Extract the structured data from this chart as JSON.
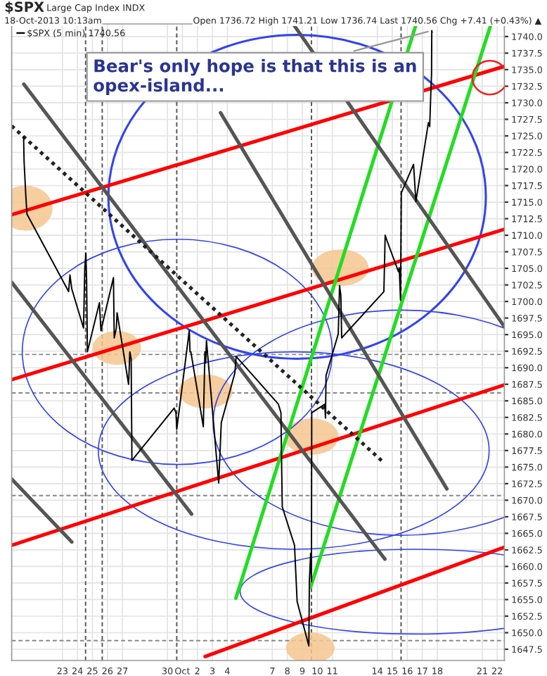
{
  "chart_data": {
    "type": "line",
    "title": "$SPX",
    "subtitle": "Large Cap Index INDX",
    "annotations": [
      "18-Oct-2013 10:13am",
      "Open 1736.72 High 1741.21 Low 1736.74 Last 1740.56 Chg +7.41 (+0.43%) ▲",
      {
        "text": "Bear's only hope is that this is an opex-island...",
        "x": "2013-10-17T15:13",
        "y": 1740.9
      }
    ],
    "xlim": [
      "2013-09-19T14:42",
      "2013-10-22T11:27"
    ],
    "ylim": [
      1645.8,
      1741.9
    ],
    "xticks": [
      {
        "value": "2013-09-23",
        "label": "23"
      },
      {
        "value": "2013-09-24",
        "label": "24"
      },
      {
        "value": "2013-09-25",
        "label": "25"
      },
      {
        "value": "2013-09-26",
        "label": "26"
      },
      {
        "value": "2013-09-27",
        "label": "27"
      },
      {
        "value": "2013-09-30",
        "label": "30"
      },
      {
        "value": "2013-10-01",
        "label": "Oct"
      },
      {
        "value": "2013-10-02",
        "label": "2"
      },
      {
        "value": "2013-10-03",
        "label": "3"
      },
      {
        "value": "2013-10-04",
        "label": "4"
      },
      {
        "value": "2013-10-07",
        "label": "7"
      },
      {
        "value": "2013-10-08",
        "label": "8"
      },
      {
        "value": "2013-10-09",
        "label": "9"
      },
      {
        "value": "2013-10-10",
        "label": "10"
      },
      {
        "value": "2013-10-11",
        "label": "11"
      },
      {
        "value": "2013-10-14",
        "label": "14"
      },
      {
        "value": "2013-10-15",
        "label": "15"
      },
      {
        "value": "2013-10-16",
        "label": "16"
      },
      {
        "value": "2013-10-17",
        "label": "17"
      },
      {
        "value": "2013-10-18",
        "label": "18"
      },
      {
        "value": "2013-10-21",
        "label": "21"
      },
      {
        "value": "2013-10-22",
        "label": "22"
      }
    ],
    "yticks": [
      {
        "value": 1647.5,
        "label": "1647.5"
      },
      {
        "value": 1650,
        "label": "1650.0"
      },
      {
        "value": 1652.5,
        "label": "1652.5"
      },
      {
        "value": 1655,
        "label": "1655.0"
      },
      {
        "value": 1657.5,
        "label": "1657.5"
      },
      {
        "value": 1660,
        "label": "1660.0"
      },
      {
        "value": 1662.5,
        "label": "1662.5"
      },
      {
        "value": 1665,
        "label": "1665.0"
      },
      {
        "value": 1667.5,
        "label": "1667.5"
      },
      {
        "value": 1670,
        "label": "1670.0"
      },
      {
        "value": 1672.5,
        "label": "1672.5"
      },
      {
        "value": 1675,
        "label": "1675.0"
      },
      {
        "value": 1677.5,
        "label": "1677.5"
      },
      {
        "value": 1680,
        "label": "1680.0"
      },
      {
        "value": 1682.5,
        "label": "1682.5"
      },
      {
        "value": 1685,
        "label": "1685.0"
      },
      {
        "value": 1687.5,
        "label": "1687.5"
      },
      {
        "value": 1690,
        "label": "1690.0"
      },
      {
        "value": 1692.5,
        "label": "1692.5"
      },
      {
        "value": 1695,
        "label": "1695.0"
      },
      {
        "value": 1697.5,
        "label": "1697.5"
      },
      {
        "value": 1700,
        "label": "1700.0"
      },
      {
        "value": 1702.5,
        "label": "1702.5"
      },
      {
        "value": 1705,
        "label": "1705.0"
      },
      {
        "value": 1707.5,
        "label": "1707.5"
      },
      {
        "value": 1710,
        "label": "1710.0"
      },
      {
        "value": 1712.5,
        "label": "1712.5"
      },
      {
        "value": 1715,
        "label": "1715.0"
      },
      {
        "value": 1717.5,
        "label": "1717.5"
      },
      {
        "value": 1720,
        "label": "1720.0"
      },
      {
        "value": 1722.5,
        "label": "1722.5"
      },
      {
        "value": 1725,
        "label": "1725.0"
      },
      {
        "value": 1727.5,
        "label": "1727.5"
      },
      {
        "value": 1730,
        "label": "1730.0"
      },
      {
        "value": 1732.5,
        "label": "1732.5"
      },
      {
        "value": 1735,
        "label": "1735.0"
      },
      {
        "value": 1737.5,
        "label": "1737.5"
      },
      {
        "value": 1740,
        "label": "1740.0"
      }
    ],
    "grid": true,
    "legend": "top left",
    "ref_lines": [
      {
        "axis": "y",
        "value": 1692.0,
        "color": "#888888",
        "line_style": "dashed"
      },
      {
        "axis": "y",
        "value": 1686.2,
        "color": "#888888",
        "line_style": "dashed"
      },
      {
        "axis": "y",
        "value": 1670.7,
        "color": "#888888",
        "line_style": "dashed"
      },
      {
        "axis": "y",
        "value": 1648.8,
        "color": "#888888",
        "line_style": "dashed"
      },
      {
        "axis": "x",
        "value": "2013-09-24T13:01",
        "color": "#555555",
        "line_style": "dashed"
      },
      {
        "axis": "x",
        "value": "2013-09-25T15:40",
        "color": "#555555",
        "line_style": "dashed"
      },
      {
        "axis": "x",
        "value": "2013-09-30T14:58",
        "color": "#555555",
        "line_style": "dashed"
      },
      {
        "axis": "x",
        "value": "2013-10-09T14:34",
        "color": "#555555",
        "line_style": "dashed"
      },
      {
        "axis": "x",
        "value": "2013-10-15T14:03",
        "color": "#555555",
        "line_style": "dashed"
      }
    ],
    "series": [
      {
        "name": "$SPX (5 min) 1740.56",
        "color": "#000000",
        "x": [
          "2013-09-20T09:46",
          "2013-09-20T10:36",
          "2013-09-20T13:05",
          "2013-09-20T15:09",
          "2013-09-23T09:53",
          "2013-09-23T12:02",
          "2013-09-23T14:54",
          "2013-09-24T09:42",
          "2013-09-24T11:47",
          "2013-09-24T13:28",
          "2013-09-24T14:42",
          "2013-09-24T15:56",
          "2013-09-25T11:08",
          "2013-09-25T13:36",
          "2013-09-26T09:38",
          "2013-09-26T10:52",
          "2013-09-26T14:15",
          "2013-09-26T15:29",
          "2013-09-27T09:50",
          "2013-09-27T11:54",
          "2013-09-27T13:59",
          "2013-09-27T15:13",
          "2013-09-30T10:48",
          "2013-09-30T13:44",
          "2013-09-30T14:58",
          "2013-10-01T11:00",
          "2013-10-01T12:14",
          "2013-10-01T13:32",
          "2013-10-02T09:30",
          "2013-10-02T12:02",
          "2013-10-02T13:16",
          "2013-10-02T14:30",
          "2013-10-03T10:05",
          "2013-10-03T14:15",
          "2013-10-04T11:58",
          "2013-10-04T14:03",
          "2013-10-07T09:38",
          "2013-10-07T13:47",
          "2013-10-07T14:38",
          "2013-10-07T15:52",
          "2013-10-08T11:27",
          "2013-10-08T13:32",
          "2013-10-08T15:41",
          "2013-10-09T10:25",
          "2013-10-09T10:48",
          "2013-10-09T11:15",
          "2013-10-09T13:20",
          "2013-10-09T14:34",
          "2013-10-09T15:02",
          "2013-10-10T11:50",
          "2013-10-10T13:05",
          "2013-10-10T13:55",
          "2013-10-11T09:30",
          "2013-10-11T11:35",
          "2013-10-11T13:40",
          "2013-10-11T14:58",
          "2013-10-14T10:32",
          "2013-10-14T12:37",
          "2013-10-14T14:42",
          "2013-10-15T09:53",
          "2013-10-15T11:08",
          "2013-10-15T13:12",
          "2013-10-15T14:26",
          "2013-10-16T10:01",
          "2013-10-16T12:10",
          "2013-10-16T13:47",
          "2013-10-17T09:50",
          "2013-10-17T11:54",
          "2013-10-17T13:36",
          "2013-10-17T14:50",
          "2013-10-17T15:13",
          "2013-10-17T15:41"
        ],
        "values": [
          1724.9,
          1721.1,
          1716.4,
          1713.2,
          1701.5,
          1704.0,
          1701.9,
          1696.0,
          1705.1,
          1707.3,
          1703.0,
          1692.4,
          1699.8,
          1695.6,
          1703.6,
          1694.5,
          1696.0,
          1698.3,
          1687.5,
          1692.4,
          1691.3,
          1676.0,
          1683.9,
          1683.2,
          1680.7,
          1695.6,
          1692.4,
          1692.4,
          1681.1,
          1692.4,
          1690.7,
          1694.1,
          1672.6,
          1681.7,
          1689.2,
          1691.7,
          1684.5,
          1683.2,
          1676.8,
          1669.0,
          1663.2,
          1659.0,
          1654.7,
          1648.0,
          1652.6,
          1657.7,
          1662.0,
          1657.7,
          1683.2,
          1684.5,
          1682.4,
          1688.8,
          1695.1,
          1702.4,
          1700.9,
          1694.5,
          1701.5,
          1710.0,
          1709.4,
          1704.5,
          1705.1,
          1700.2,
          1716.4,
          1720.7,
          1717.5,
          1715.1,
          1727.0,
          1726.4,
          1731.3,
          1734.3,
          1740.9,
          1740.6
        ]
      },
      {
        "color": "#ff0000",
        "x": [
          "2013-09-19T14:42",
          "2013-10-22T11:27"
        ],
        "values": [
          1713.1,
          1735.5
        ]
      },
      {
        "color": "#ff0000",
        "x": [
          "2013-09-19T14:42",
          "2013-10-22T11:27"
        ],
        "values": [
          1688.2,
          1710.9
        ]
      },
      {
        "color": "#ff0000",
        "x": [
          "2013-09-19T14:42",
          "2013-10-22T11:27"
        ],
        "values": [
          1663.2,
          1687.4
        ]
      },
      {
        "color": "#ff0000",
        "x": [
          "2013-10-02T12:22",
          "2013-10-22T11:27"
        ],
        "values": [
          1646.4,
          1662.9
        ]
      },
      {
        "color": "#22dd22",
        "x": [
          "2013-10-04T13:36",
          "2013-10-16T13:55"
        ],
        "values": [
          1655.2,
          1741.8
        ]
      },
      {
        "color": "#22dd22",
        "x": [
          "2013-10-09T13:20",
          "2013-10-21T13:44"
        ],
        "values": [
          1656.9,
          1741.8
        ]
      },
      {
        "color": "#555555",
        "x": [
          "2013-10-08T09:57",
          "2013-10-22T11:27"
        ],
        "values": [
          1741.8,
          1696.2
        ]
      },
      {
        "color": "#555555",
        "x": [
          "2013-09-20T10:09",
          "2013-10-14T12:10"
        ],
        "values": [
          1732.8,
          1661.1
        ]
      },
      {
        "color": "#555555",
        "x": [
          "2013-10-03T13:01",
          "2013-10-18T15:25"
        ],
        "values": [
          1728.5,
          1671.7
        ]
      },
      {
        "color": "#555555",
        "x": [
          "2013-09-19T14:42",
          "2013-10-01T14:46"
        ],
        "values": [
          1702.9,
          1667.9
        ]
      },
      {
        "color": "#555555",
        "x": [
          "2013-09-19T14:42",
          "2013-09-23T14:54"
        ],
        "values": [
          1673.2,
          1663.7
        ]
      },
      {
        "color": "#222222",
        "line_style": "dotted",
        "x": [
          "2013-09-19T14:42",
          "2013-10-14T11:19"
        ],
        "values": [
          1726.5,
          1675.6
        ]
      }
    ]
  }
}
